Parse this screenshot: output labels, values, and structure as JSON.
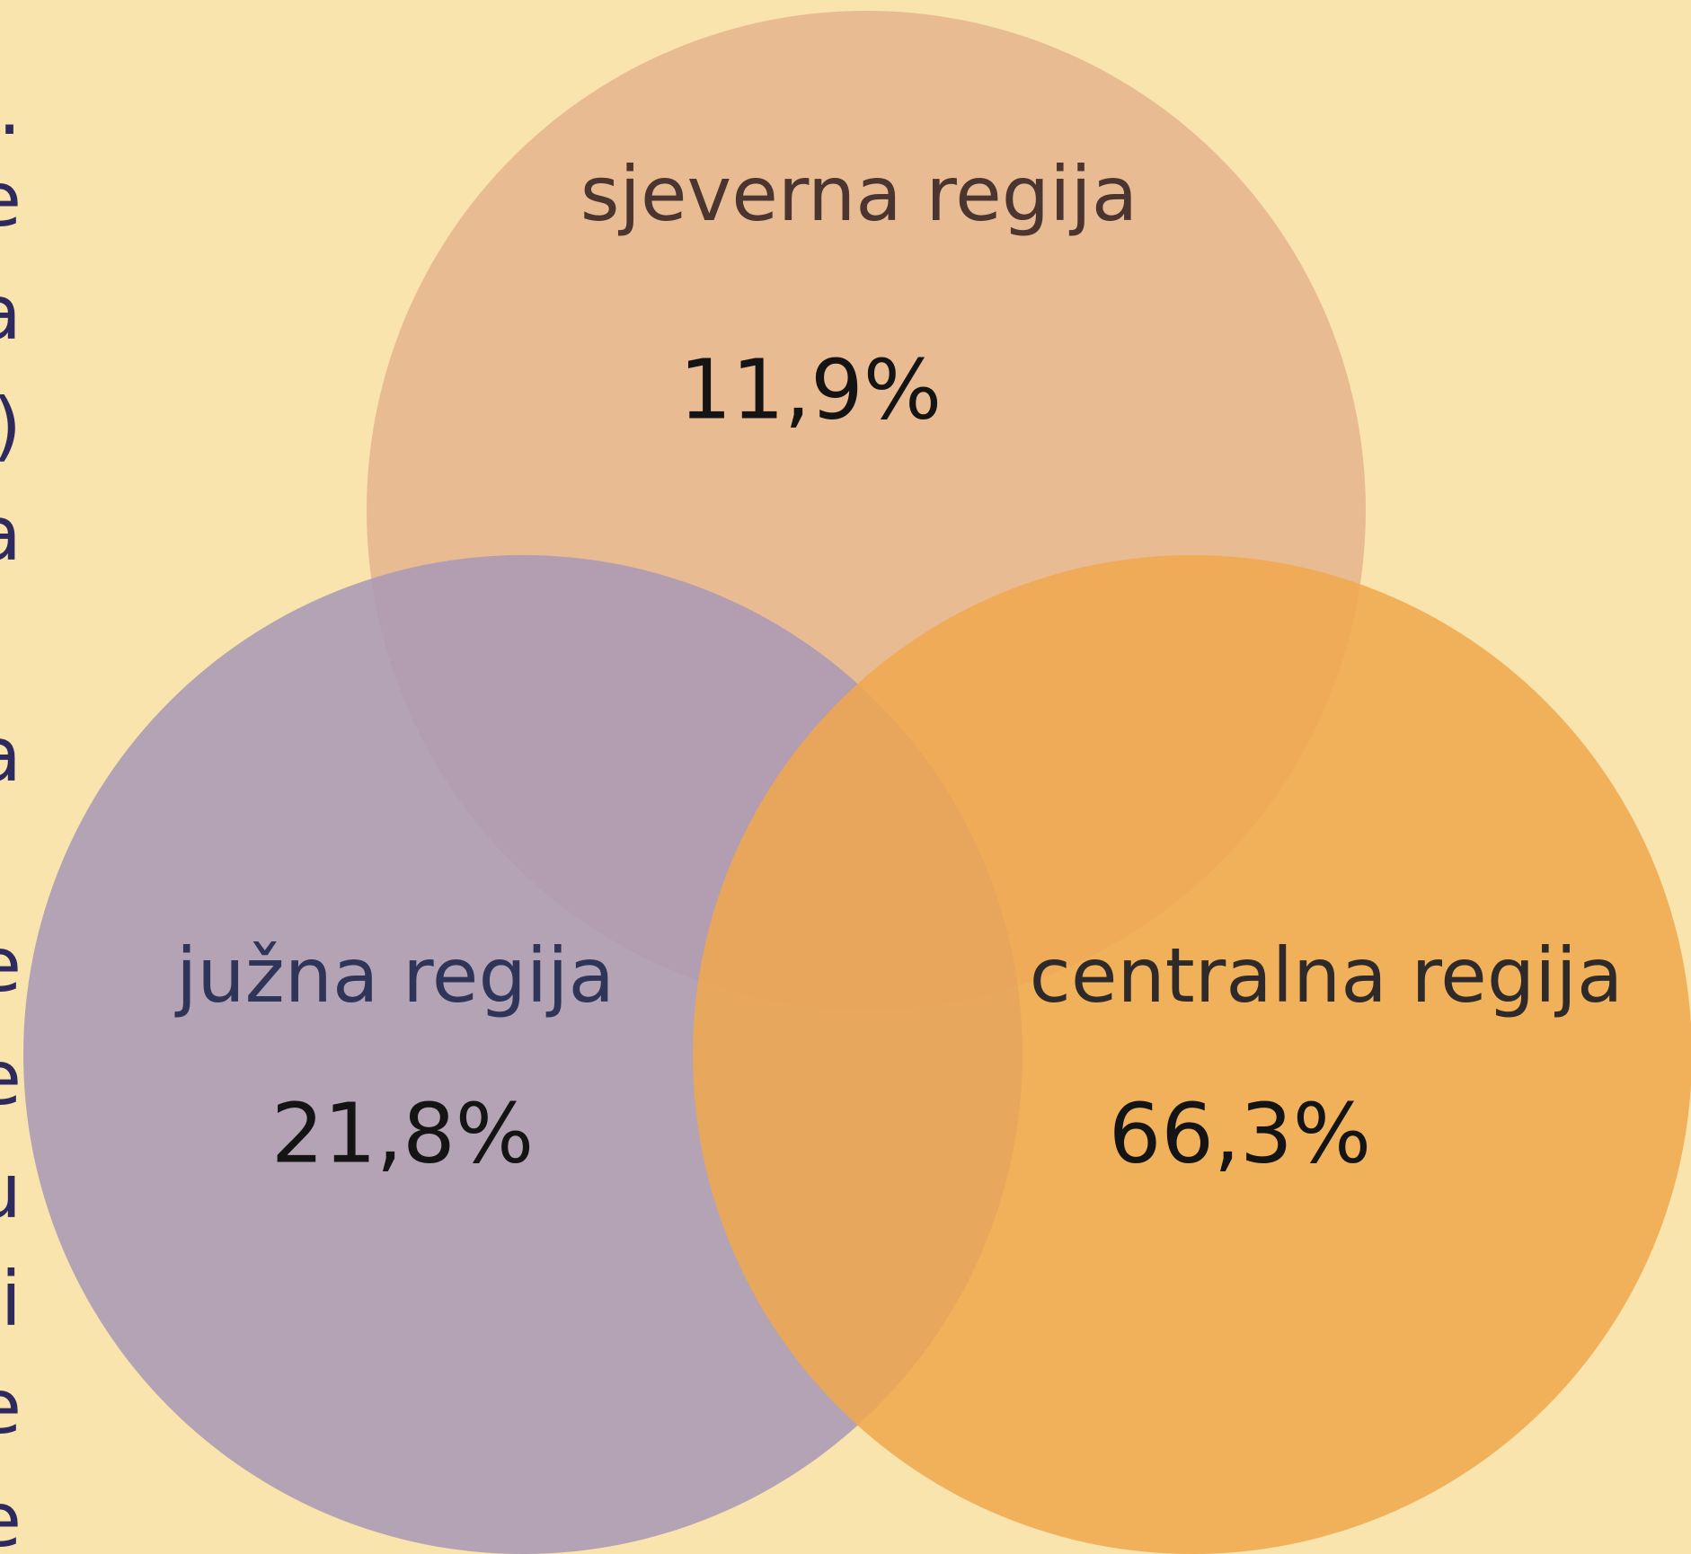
{
  "chart_data": {
    "type": "venn",
    "categories": [
      "sjeverna regija",
      "južna regija",
      "centralna regija"
    ],
    "values": [
      11.9,
      21.8,
      66.3
    ],
    "value_labels": [
      "11,9%",
      "21,8%",
      "66,3%"
    ],
    "colors": [
      "#e6b48e",
      "#a898b6",
      "#f0a84c"
    ]
  },
  "edge_text": [
    ".",
    "e",
    "a",
    ")",
    "a",
    "a",
    "e",
    "e",
    "u",
    "i",
    "e",
    "e"
  ]
}
